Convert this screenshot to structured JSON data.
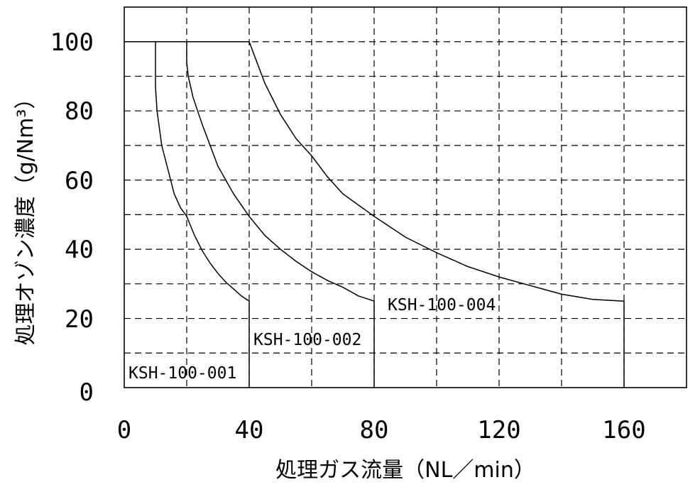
{
  "chart_data": {
    "type": "line",
    "xlabel": "処理ガス流量（NL／min）",
    "ylabel": "処理オゾン濃度（g/Nm³）",
    "xlim": [
      0,
      180
    ],
    "ylim": [
      0,
      110
    ],
    "x_ticks": [
      "0",
      "40",
      "80",
      "120",
      "160"
    ],
    "y_ticks": [
      "0",
      "20",
      "40",
      "60",
      "80",
      "100"
    ],
    "grid": true,
    "series": [
      {
        "name": "KSH-100-001",
        "x": [
          10,
          10,
          10.5,
          12,
          14,
          16,
          18,
          20,
          22.5,
          25,
          27.5,
          30,
          32.5,
          35,
          37.5,
          40,
          40
        ],
        "y": [
          100,
          87,
          80,
          70,
          63,
          56,
          52,
          49.5,
          44,
          39.5,
          36,
          33,
          30.5,
          28.5,
          26.5,
          25,
          0
        ]
      },
      {
        "name": "KSH-100-002",
        "x": [
          20,
          20,
          20.5,
          22,
          25,
          30,
          35,
          40,
          45,
          50,
          55,
          60,
          65,
          70,
          75,
          80,
          80
        ],
        "y": [
          100,
          94,
          90,
          84,
          76,
          64,
          56,
          49.5,
          44,
          40,
          36.5,
          33.5,
          31,
          29,
          26.5,
          25,
          0
        ]
      },
      {
        "name": "KSH-100-004",
        "x": [
          40,
          45,
          50,
          55,
          60,
          65,
          70,
          80,
          90,
          100,
          110,
          120,
          130,
          140,
          150,
          160,
          160
        ],
        "y": [
          100,
          88,
          79,
          72,
          67,
          61,
          56,
          49.5,
          43.5,
          39,
          35,
          32,
          29.5,
          27,
          25.5,
          25,
          0
        ]
      }
    ],
    "top_line": {
      "x": [
        0,
        40
      ],
      "y": [
        100,
        100
      ]
    }
  }
}
